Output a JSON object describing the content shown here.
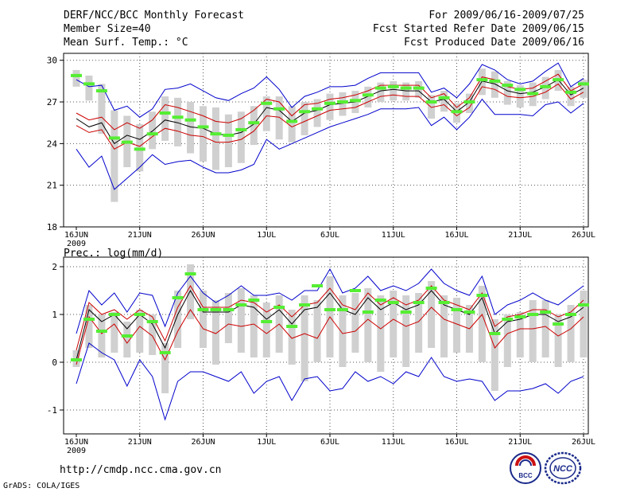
{
  "header": {
    "title": "DERF/NCC/BCC Monthly Forecast",
    "member_size": "Member Size=40",
    "variable": "Mean Surf. Temp.: °C",
    "period": "For 2009/06/16-2009/07/25",
    "refer_date": "Fcst Started Refer Date 2009/06/15",
    "produced_date": "Fcst Produced Date 2009/06/16"
  },
  "footer": {
    "url": "http://cmdp.ncc.cma.gov.cn",
    "grads": "GrADS: COLA/IGES",
    "logo_left_text": "BCC",
    "logo_right_text": "NCC"
  },
  "colors": {
    "box": "#d0d0d0",
    "median": "#55ee33",
    "spread": "#0000cc",
    "inner": "#cc0000",
    "mean": "#000000",
    "grid": "#555555"
  },
  "chart_data": [
    {
      "type": "line",
      "title": "Mean Surf. Temp.: °C",
      "ylim": [
        18,
        30.5
      ],
      "yticks": [
        18,
        21,
        24,
        27,
        30
      ],
      "xlim": [
        0,
        39
      ],
      "x_tick_positions": [
        0,
        5,
        10,
        15,
        20,
        25,
        30,
        35
      ],
      "x_tick_labels": [
        "16JUN",
        "21JUN",
        "26JUN",
        "1JUL",
        "6JUL",
        "11JUL",
        "16JUL",
        "21JUL",
        "26JUL"
      ],
      "x_tick_positions_all": [
        0,
        5,
        10,
        15,
        20,
        25,
        30,
        35,
        40
      ],
      "x_sublabel": "2009",
      "mean": [
        25.8,
        25.2,
        25.5,
        24.0,
        24.6,
        24.3,
        24.9,
        25.7,
        25.5,
        25.2,
        25.1,
        24.7,
        24.6,
        24.8,
        25.4,
        26.6,
        26.4,
        25.6,
        26.2,
        26.4,
        26.8,
        26.9,
        27.0,
        27.4,
        27.8,
        27.9,
        27.8,
        27.8,
        27.0,
        27.2,
        26.3,
        27.0,
        28.5,
        28.3,
        27.8,
        27.6,
        27.7,
        28.1,
        28.6,
        27.5,
        28.0
      ],
      "red_upper": [
        26.2,
        25.7,
        25.9,
        25.0,
        25.5,
        25.1,
        25.7,
        26.8,
        26.6,
        26.3,
        26.0,
        25.6,
        25.5,
        25.8,
        26.4,
        27.2,
        27.0,
        26.0,
        26.8,
        26.9,
        27.2,
        27.3,
        27.5,
        27.8,
        28.2,
        28.2,
        28.2,
        28.2,
        27.3,
        27.6,
        26.6,
        27.3,
        28.8,
        28.6,
        28.1,
        27.9,
        28.0,
        28.5,
        29.0,
        27.8,
        28.3
      ],
      "red_lower": [
        25.3,
        24.8,
        25.0,
        23.6,
        24.1,
        23.8,
        24.5,
        25.1,
        24.9,
        24.6,
        24.5,
        24.1,
        24.1,
        24.3,
        24.9,
        26.0,
        25.9,
        25.2,
        25.6,
        26.0,
        26.4,
        26.5,
        26.6,
        27.0,
        27.4,
        27.5,
        27.4,
        27.4,
        26.6,
        26.8,
        26.0,
        26.6,
        28.1,
        27.9,
        27.4,
        27.3,
        27.4,
        27.7,
        28.3,
        27.2,
        27.7
      ],
      "blue_upper": [
        28.6,
        28.1,
        28.2,
        26.4,
        26.7,
        25.9,
        26.5,
        27.9,
        28.0,
        28.3,
        27.8,
        27.3,
        27.1,
        27.6,
        28.0,
        28.8,
        27.9,
        26.6,
        27.4,
        27.7,
        28.1,
        28.1,
        28.2,
        28.7,
        29.1,
        29.1,
        29.1,
        29.1,
        27.7,
        28.0,
        27.3,
        28.3,
        29.7,
        29.3,
        28.6,
        28.3,
        28.5,
        29.2,
        29.8,
        28.1,
        28.7
      ],
      "blue_lower": [
        23.6,
        22.3,
        23.1,
        20.7,
        21.5,
        22.3,
        23.2,
        22.5,
        22.7,
        22.8,
        22.3,
        21.9,
        21.9,
        22.1,
        22.5,
        24.3,
        23.6,
        24.0,
        24.4,
        24.8,
        25.2,
        25.5,
        25.8,
        26.1,
        26.5,
        26.5,
        26.5,
        26.6,
        25.3,
        25.9,
        25.0,
        25.9,
        27.2,
        26.1,
        26.1,
        26.1,
        26.0,
        26.8,
        27.0,
        26.2,
        26.9
      ],
      "box_high": [
        29.3,
        28.9,
        28.3,
        26.4,
        26.0,
        25.4,
        26.3,
        27.4,
        27.3,
        27.0,
        26.7,
        26.6,
        26.1,
        26.3,
        26.7,
        27.4,
        27.4,
        26.7,
        27.0,
        27.2,
        27.6,
        27.7,
        27.8,
        28.1,
        28.4,
        28.5,
        28.4,
        28.5,
        27.5,
        27.8,
        26.9,
        27.6,
        29.4,
        29.2,
        28.5,
        28.2,
        28.4,
        28.8,
        29.3,
        28.1,
        28.6
      ],
      "box_low": [
        28.1,
        27.1,
        24.7,
        19.8,
        22.3,
        22.0,
        23.6,
        24.2,
        23.8,
        23.3,
        22.7,
        22.1,
        22.3,
        22.6,
        23.9,
        24.9,
        24.3,
        24.1,
        24.6,
        25.2,
        25.7,
        26.0,
        26.2,
        26.6,
        27.0,
        27.1,
        27.1,
        27.3,
        25.8,
        26.3,
        25.5,
        26.2,
        27.5,
        27.3,
        26.8,
        26.6,
        26.7,
        27.2,
        27.8,
        26.7,
        27.3
      ],
      "median": [
        28.9,
        28.3,
        27.8,
        24.4,
        24.1,
        23.6,
        24.7,
        26.2,
        25.9,
        25.7,
        25.2,
        24.7,
        24.6,
        25.0,
        25.5,
        26.9,
        26.5,
        25.6,
        26.3,
        26.5,
        26.9,
        27.0,
        27.1,
        27.5,
        28.0,
        28.1,
        28.0,
        28.0,
        27.0,
        27.3,
        26.3,
        27.0,
        28.6,
        28.5,
        28.2,
        27.9,
        27.6,
        28.1,
        28.6,
        27.7,
        28.3
      ]
    },
    {
      "type": "line",
      "title": "Prec.: log(mm/d)",
      "ylim": [
        -1.5,
        2.2
      ],
      "yticks": [
        -1,
        0,
        1,
        2
      ],
      "xlim": [
        0,
        39
      ],
      "x_tick_positions": [
        0,
        5,
        10,
        15,
        20,
        25,
        30,
        35
      ],
      "x_tick_labels": [
        "16JUN",
        "21JUN",
        "26JUN",
        "1JUL",
        "6JUL",
        "11JUL",
        "16JUL",
        "21JUL",
        "26JUL"
      ],
      "x_tick_positions_all": [
        0,
        5,
        10,
        15,
        20,
        25,
        30,
        35,
        40
      ],
      "x_sublabel": "2009",
      "mean": [
        0.05,
        1.1,
        0.85,
        1.0,
        0.7,
        1.0,
        0.8,
        0.3,
        1.0,
        1.5,
        1.05,
        1.05,
        1.05,
        1.2,
        1.15,
        0.9,
        1.1,
        0.8,
        1.1,
        1.15,
        1.45,
        1.1,
        1.0,
        1.35,
        1.1,
        1.25,
        1.1,
        1.2,
        1.5,
        1.2,
        1.1,
        1.0,
        1.35,
        0.6,
        0.85,
        0.9,
        1.0,
        1.0,
        0.85,
        0.95,
        1.15
      ],
      "red_upper": [
        0.25,
        1.25,
        1.0,
        1.1,
        0.9,
        1.1,
        0.95,
        0.45,
        1.15,
        1.6,
        1.15,
        1.15,
        1.15,
        1.3,
        1.25,
        1.05,
        1.2,
        0.95,
        1.2,
        1.25,
        1.55,
        1.2,
        1.1,
        1.45,
        1.2,
        1.35,
        1.2,
        1.3,
        1.6,
        1.3,
        1.2,
        1.1,
        1.45,
        0.75,
        0.95,
        1.0,
        1.1,
        1.1,
        0.95,
        1.05,
        1.3
      ],
      "red_lower": [
        -0.05,
        0.95,
        0.6,
        0.8,
        0.4,
        0.75,
        0.55,
        0.05,
        0.65,
        1.1,
        0.7,
        0.6,
        0.8,
        0.75,
        0.8,
        0.6,
        0.8,
        0.5,
        0.6,
        0.5,
        0.95,
        0.6,
        0.65,
        0.9,
        0.7,
        0.9,
        0.75,
        0.85,
        1.15,
        0.9,
        0.8,
        0.7,
        1.0,
        0.3,
        0.6,
        0.7,
        0.7,
        0.75,
        0.55,
        0.7,
        0.95
      ],
      "blue_upper": [
        0.6,
        1.5,
        1.2,
        1.45,
        1.05,
        1.45,
        1.4,
        0.75,
        1.45,
        1.8,
        1.45,
        1.25,
        1.4,
        1.6,
        1.4,
        1.4,
        1.45,
        1.3,
        1.5,
        1.5,
        1.95,
        1.45,
        1.55,
        1.8,
        1.5,
        1.6,
        1.5,
        1.65,
        1.95,
        1.65,
        1.5,
        1.4,
        1.8,
        1.0,
        1.2,
        1.3,
        1.45,
        1.3,
        1.2,
        1.4,
        1.6
      ],
      "blue_lower": [
        -0.45,
        0.4,
        0.2,
        0.05,
        -0.5,
        0.05,
        -0.3,
        -1.2,
        -0.4,
        -0.2,
        -0.2,
        -0.3,
        -0.4,
        -0.2,
        -0.65,
        -0.4,
        -0.3,
        -0.8,
        -0.35,
        -0.3,
        -0.6,
        -0.55,
        -0.2,
        -0.4,
        -0.3,
        -0.45,
        -0.2,
        -0.3,
        0.1,
        -0.3,
        -0.4,
        -0.35,
        -0.4,
        -0.8,
        -0.6,
        -0.6,
        -0.55,
        -0.45,
        -0.65,
        -0.4,
        -0.3
      ],
      "box_high": [
        0.25,
        1.2,
        1.0,
        1.05,
        0.85,
        1.1,
        1.0,
        0.4,
        1.5,
        2.05,
        1.5,
        1.3,
        1.45,
        1.55,
        1.4,
        1.25,
        1.4,
        1.1,
        1.4,
        1.3,
        1.8,
        1.4,
        1.45,
        1.55,
        1.4,
        1.5,
        1.4,
        1.45,
        1.7,
        1.4,
        1.35,
        1.2,
        1.6,
        0.9,
        1.0,
        1.05,
        1.3,
        1.3,
        1.0,
        1.2,
        1.5
      ],
      "box_low": [
        -0.1,
        0.3,
        0.1,
        0.2,
        0.1,
        0.2,
        0.15,
        -0.65,
        0.3,
        0.9,
        0.3,
        -0.05,
        0.4,
        0.2,
        0.1,
        0.1,
        0.2,
        -0.05,
        -0.4,
        0.0,
        0.1,
        -0.1,
        0.2,
        0.0,
        -0.2,
        0.1,
        -0.1,
        0.2,
        0.3,
        0.1,
        0.2,
        0.2,
        0.0,
        -0.6,
        -0.1,
        0.1,
        0.0,
        0.1,
        -0.1,
        0.0,
        0.1
      ],
      "median": [
        0.05,
        0.9,
        0.65,
        1.0,
        0.55,
        1.0,
        0.85,
        0.2,
        1.35,
        1.85,
        1.1,
        1.1,
        1.1,
        1.2,
        1.3,
        0.85,
        1.15,
        0.75,
        1.2,
        1.6,
        1.1,
        1.1,
        1.5,
        1.05,
        1.3,
        1.25,
        1.05,
        1.25,
        1.55,
        1.25,
        1.1,
        1.05,
        1.4,
        0.6,
        0.9,
        0.95,
        1.0,
        1.05,
        0.8,
        1.0,
        1.2
      ]
    }
  ]
}
